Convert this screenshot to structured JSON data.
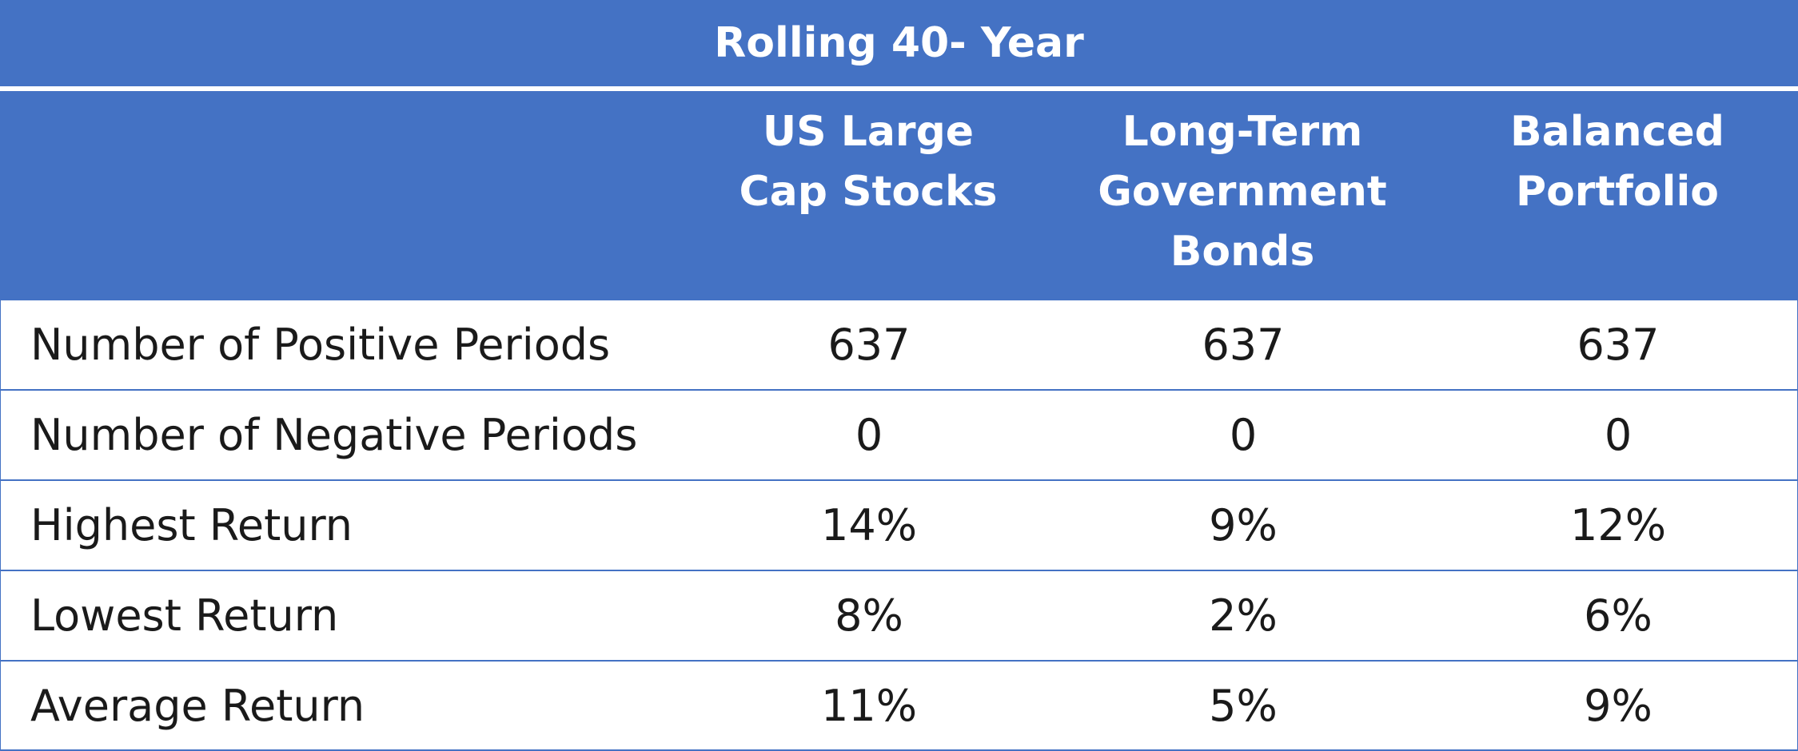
{
  "chart_data": {
    "type": "table",
    "title": "Rolling 40- Year",
    "columns": [
      "US Large\nCap Stocks",
      "Long-Term\nGovernment\nBonds",
      "Balanced\nPortfolio"
    ],
    "rows": [
      {
        "label": "Number of Positive Periods",
        "values": [
          "637",
          "637",
          "637"
        ]
      },
      {
        "label": "Number of Negative Periods",
        "values": [
          "0",
          "0",
          "0"
        ]
      },
      {
        "label": "Highest Return",
        "values": [
          "14%",
          "9%",
          "12%"
        ]
      },
      {
        "label": "Lowest Return",
        "values": [
          "8%",
          "2%",
          "6%"
        ]
      },
      {
        "label": "Average Return",
        "values": [
          "11%",
          "5%",
          "9%"
        ]
      }
    ]
  },
  "colors": {
    "header_background": "#4472c4",
    "header_text": "#ffffff",
    "body_text": "#1a1a1a",
    "grid_line": "#4472c4"
  }
}
